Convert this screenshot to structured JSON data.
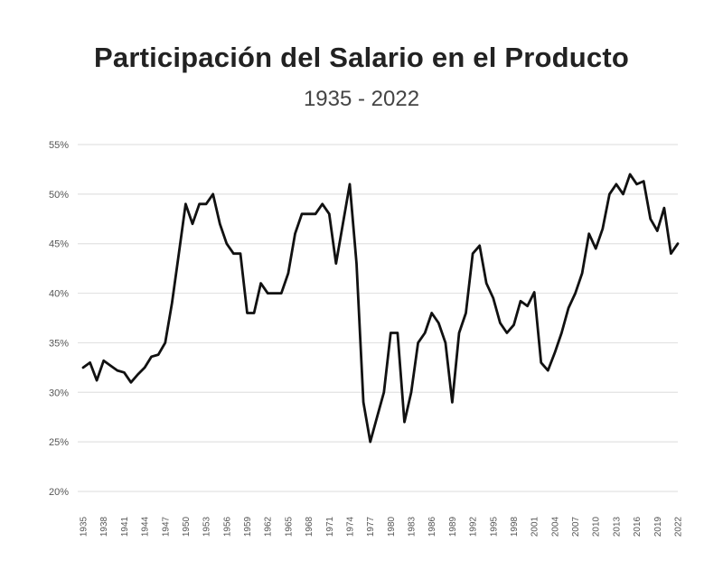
{
  "chart_data": {
    "type": "line",
    "title": "Participación del Salario en el Producto",
    "subtitle": "1935 - 2022",
    "xlabel": "",
    "ylabel": "",
    "ylim": [
      20,
      55
    ],
    "y_ticks": [
      20,
      25,
      30,
      35,
      40,
      45,
      50,
      55
    ],
    "y_tick_labels": [
      "20%",
      "25%",
      "30%",
      "35%",
      "40%",
      "45%",
      "50%",
      "55%"
    ],
    "x_ticks": [
      1935,
      1938,
      1941,
      1944,
      1947,
      1950,
      1953,
      1956,
      1959,
      1962,
      1965,
      1968,
      1971,
      1974,
      1977,
      1980,
      1983,
      1986,
      1989,
      1992,
      1995,
      1998,
      2001,
      2004,
      2007,
      2010,
      2013,
      2016,
      2019,
      2022
    ],
    "x_tick_labels": [
      "1935",
      "1938",
      "1941",
      "1944",
      "1947",
      "1950",
      "1953",
      "1956",
      "1959",
      "1962",
      "1965",
      "1968",
      "1971",
      "1974",
      "1977",
      "1980",
      "1983",
      "1986",
      "1989",
      "1992",
      "1995",
      "1998",
      "2001",
      "2004",
      "2007",
      "2010",
      "2013",
      "2016",
      "2019",
      "2022"
    ],
    "grid": true,
    "legend": "none",
    "line_color": "#111111",
    "x": [
      1935,
      1936,
      1937,
      1938,
      1939,
      1940,
      1941,
      1942,
      1943,
      1944,
      1945,
      1946,
      1947,
      1948,
      1949,
      1950,
      1951,
      1952,
      1953,
      1954,
      1955,
      1956,
      1957,
      1958,
      1959,
      1960,
      1961,
      1962,
      1963,
      1964,
      1965,
      1966,
      1967,
      1968,
      1969,
      1970,
      1971,
      1972,
      1973,
      1974,
      1975,
      1976,
      1977,
      1978,
      1979,
      1980,
      1981,
      1982,
      1983,
      1984,
      1985,
      1986,
      1987,
      1988,
      1989,
      1990,
      1991,
      1992,
      1993,
      1994,
      1995,
      1996,
      1997,
      1998,
      1999,
      2000,
      2001,
      2002,
      2003,
      2004,
      2005,
      2006,
      2007,
      2008,
      2009,
      2010,
      2011,
      2012,
      2013,
      2014,
      2015,
      2016,
      2017,
      2018,
      2019,
      2020,
      2021,
      2022
    ],
    "values": [
      32.5,
      33,
      31.2,
      33.2,
      32.7,
      32.2,
      32,
      31,
      31.8,
      32.5,
      33.6,
      33.8,
      35,
      39,
      44,
      49,
      47,
      49,
      49,
      50,
      47,
      45,
      44,
      44,
      38,
      38,
      41,
      40,
      40,
      40,
      42,
      46,
      48,
      48,
      48,
      49,
      48,
      43,
      47,
      51,
      43,
      29,
      25,
      27.5,
      30,
      36,
      36,
      27,
      30,
      35,
      36,
      38,
      37,
      35,
      29,
      36,
      38,
      44,
      44.8,
      41,
      39.5,
      37,
      36,
      36.8,
      39.2,
      38.7,
      40.1,
      33,
      32.2,
      34,
      36,
      38.5,
      40,
      42,
      46,
      44.5,
      46.5,
      50,
      51,
      50,
      52,
      51,
      51.3,
      47.5,
      46.3,
      48.6,
      44,
      45
    ]
  }
}
